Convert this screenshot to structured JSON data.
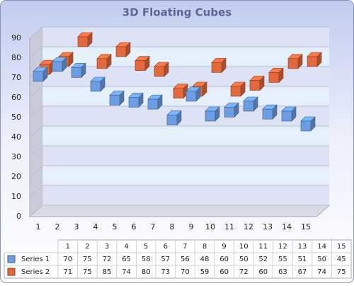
{
  "chart_data": {
    "type": "bar3d",
    "title": "3D Floating Cubes",
    "categories": [
      "1",
      "2",
      "3",
      "4",
      "5",
      "6",
      "7",
      "8",
      "9",
      "10",
      "11",
      "12",
      "13",
      "14",
      "15"
    ],
    "series": [
      {
        "name": "Series 1",
        "color": "#6c9de3",
        "values": [
          70,
          75,
          72,
          65,
          58,
          57,
          56,
          48,
          60,
          50,
          52,
          55,
          51,
          50,
          45
        ]
      },
      {
        "name": "Series 2",
        "color": "#e2693d",
        "values": [
          71,
          75,
          85,
          74,
          80,
          73,
          70,
          59,
          60,
          72,
          60,
          63,
          67,
          74,
          75
        ]
      }
    ],
    "ylim": [
      0,
      90
    ],
    "yticks": [
      0,
      10,
      20,
      30,
      40,
      50,
      60,
      70,
      80,
      90
    ],
    "grid": true
  }
}
